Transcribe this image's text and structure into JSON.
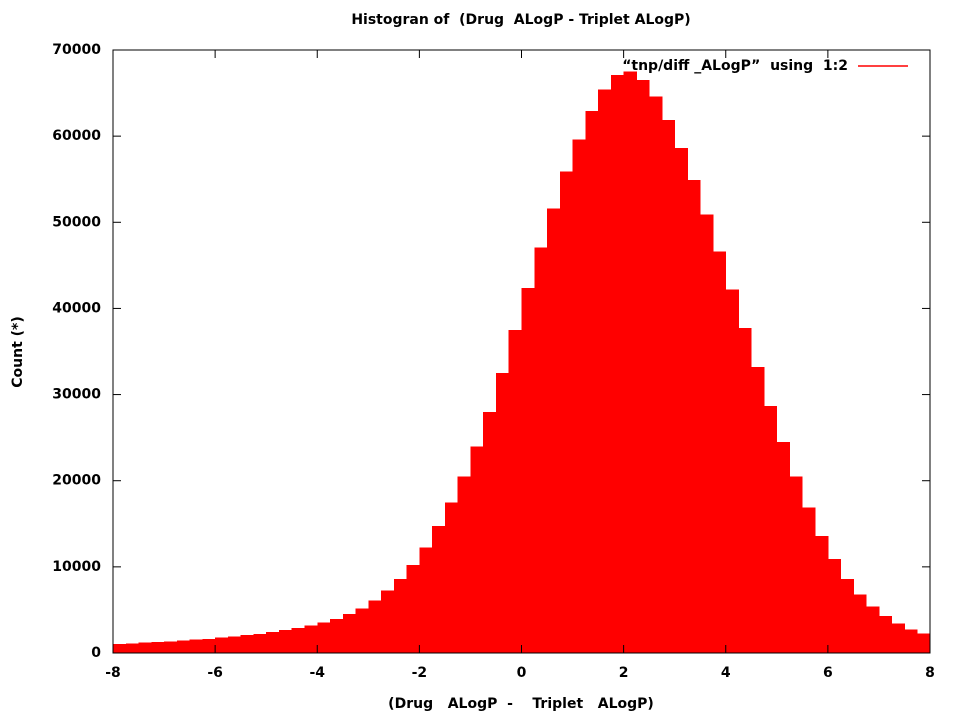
{
  "chart_data": {
    "type": "histogram",
    "title": "Histogran of  (Drug  ALogP - Triplet ALogP)",
    "x_label": "(Drug   ALogP  -    Triplet   ALogP)",
    "y_label": "Count (*)",
    "bins": [
      -8,
      -7.75,
      -7.5,
      -7.25,
      -7,
      -6.75,
      -6.5,
      -6.25,
      -6,
      -5.75,
      -5.5,
      -5.25,
      -5,
      -4.75,
      -4.5,
      -4.25,
      -4,
      -3.75,
      -3.5,
      -3.25,
      -3,
      -2.75,
      -2.5,
      -2.25,
      -2,
      -1.75,
      -1.5,
      -1.25,
      -1,
      -0.75,
      -0.5,
      -0.25,
      0,
      0.25,
      0.5,
      0.75,
      1,
      1.25,
      1.5,
      1.75,
      2,
      2.25,
      2.5,
      2.75,
      3,
      3.25,
      3.5,
      3.75,
      4,
      4.25,
      4.5,
      4.75,
      5,
      5.25,
      5.5,
      5.75,
      6,
      6.25,
      6.5,
      6.75,
      7,
      7.25,
      7.5,
      7.75,
      8
    ],
    "series": [
      {
        "name": "“tnp/diff _ALogP”  using  1:2",
        "color": "#ff0000",
        "values": [
          1040,
          1110,
          1190,
          1260,
          1350,
          1450,
          1550,
          1650,
          1780,
          1930,
          2080,
          2230,
          2420,
          2680,
          2930,
          3180,
          3520,
          3970,
          4520,
          5170,
          6080,
          7230,
          8600,
          10200,
          12250,
          14750,
          17500,
          20500,
          24000,
          28000,
          32500,
          37500,
          42400,
          47100,
          51600,
          55900,
          59600,
          62900,
          65400,
          67100,
          67500,
          66500,
          64600,
          61900,
          58600,
          54900,
          50900,
          46600,
          42200,
          37700,
          33200,
          28700,
          24500,
          20500,
          16900,
          13600,
          10900,
          8600,
          6800,
          5400,
          4300,
          3400,
          2750,
          2250
        ]
      }
    ],
    "xlim": [
      -8,
      8
    ],
    "ylim": [
      0,
      70000
    ],
    "xticks": [
      -8,
      -6,
      -4,
      -2,
      0,
      2,
      4,
      6,
      8
    ],
    "yticks": [
      0,
      10000,
      20000,
      30000,
      40000,
      50000,
      60000,
      70000
    ],
    "legend": "top-right",
    "grid": false
  }
}
